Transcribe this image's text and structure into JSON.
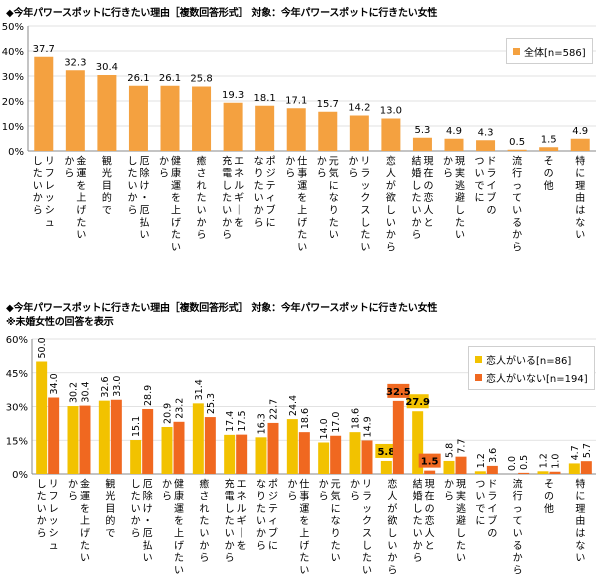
{
  "titles": {
    "chart1": "◆今年パワースポットに行きたい理由［複数回答形式］ 対象：今年パワースポットに行きたい女性",
    "chart2": "◆今年パワースポットに行きたい理由［複数回答形式］ 対象：今年パワースポットに行きたい女性",
    "chart2_note": "※未婚女性の回答を表示"
  },
  "chart_data": [
    {
      "type": "bar",
      "categories": [
        "リフレッシュしたいから",
        "金運を上げたいから",
        "観光目的で",
        "厄除け・厄払いしたいから",
        "健康運を上げたいから",
        "癒されたいから",
        "エネルギーを充電したいから",
        "ポジティブになりたいから",
        "仕事運を上げたいから",
        "元気になりたいから",
        "リラックスしたいから",
        "恋人が欲しいから",
        "現在の恋人と結婚したいから",
        "現実逃避したいから",
        "ドライブのついでに",
        "流行っているから",
        "その他",
        "特に理由はない"
      ],
      "series": [
        {
          "name": "全体[n=586]",
          "color": "#F4A140",
          "values": [
            37.7,
            32.3,
            30.4,
            26.1,
            26.1,
            25.8,
            19.3,
            18.1,
            17.1,
            15.7,
            14.2,
            13.0,
            5.3,
            4.9,
            4.3,
            0.5,
            1.5,
            4.9
          ]
        }
      ],
      "ylim": [
        0,
        50
      ],
      "yticks": [
        "0%",
        "10%",
        "20%",
        "30%",
        "40%",
        "50%"
      ],
      "grid": true,
      "legend": "top-right"
    },
    {
      "type": "bar",
      "categories": [
        "リフレッシュしたいから",
        "金運を上げたいから",
        "観光目的で",
        "厄除け・厄払いしたいから",
        "健康運を上げたいから",
        "癒されたいから",
        "エネルギーを充電したいから",
        "ポジティブになりたいから",
        "仕事運を上げたいから",
        "元気になりたいから",
        "リラックスしたいから",
        "恋人が欲しいから",
        "現在の恋人と結婚したいから",
        "現実逃避したいから",
        "ドライブのついでに",
        "流行っているから",
        "その他",
        "特に理由はない"
      ],
      "series": [
        {
          "name": "恋人がいる[n=86]",
          "color": "#F2C200",
          "values": [
            50.0,
            30.2,
            32.6,
            15.1,
            20.9,
            31.4,
            17.4,
            16.3,
            24.4,
            14.0,
            18.6,
            5.8,
            27.9,
            5.8,
            1.2,
            0.0,
            1.2,
            4.7
          ]
        },
        {
          "name": "恋人がいない[n=194]",
          "color": "#F06820",
          "values": [
            34.0,
            30.4,
            33.0,
            28.9,
            23.2,
            25.3,
            17.5,
            22.7,
            18.6,
            17.0,
            14.9,
            32.5,
            1.5,
            7.7,
            3.6,
            0.5,
            1.0,
            5.7
          ]
        }
      ],
      "ylim": [
        0,
        60
      ],
      "yticks": [
        "0%",
        "15%",
        "30%",
        "45%",
        "60%"
      ],
      "grid": true,
      "legend": "top-right",
      "highlight_labels": [
        11,
        12
      ]
    }
  ]
}
